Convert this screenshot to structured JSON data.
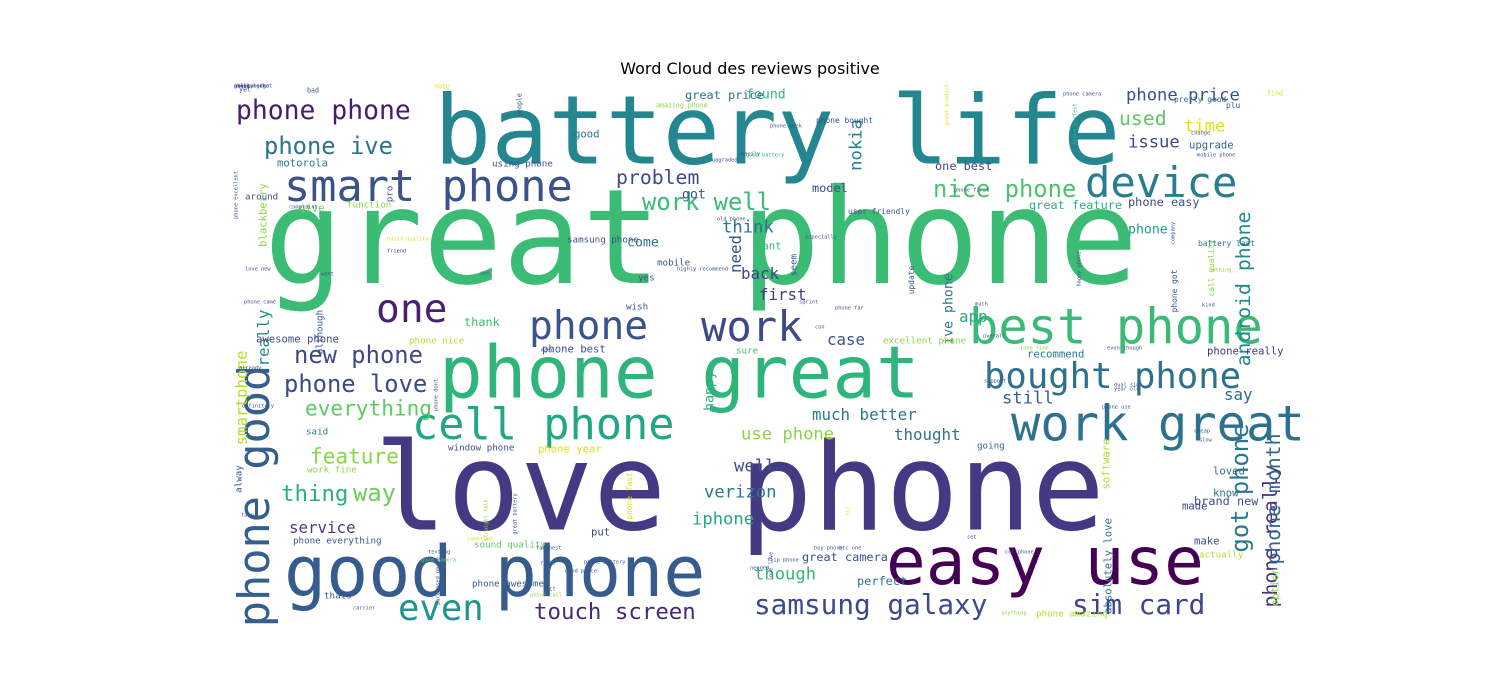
{
  "title": "Word Cloud des reviews positive",
  "chart_data": {
    "type": "wordcloud",
    "colormap": "viridis",
    "background": "#ffffff",
    "words": [
      {
        "text": "great phone",
        "weight": 1.0,
        "color": "#3bbc74"
      },
      {
        "text": "love phone",
        "weight": 0.92,
        "color": "#443a83"
      },
      {
        "text": "battery life",
        "weight": 0.72,
        "color": "#24868e"
      },
      {
        "text": "phone great",
        "weight": 0.55,
        "color": "#2fb47c"
      },
      {
        "text": "good phone",
        "weight": 0.53,
        "color": "#365c8d"
      },
      {
        "text": "easy use",
        "weight": 0.5,
        "color": "#440154"
      },
      {
        "text": "best phone",
        "weight": 0.37,
        "color": "#3aba76"
      },
      {
        "text": "work great",
        "weight": 0.37,
        "color": "#2c728e"
      },
      {
        "text": "smart phone",
        "weight": 0.33,
        "color": "#3b528b"
      },
      {
        "text": "phone good",
        "weight": 0.33,
        "color": "#355f8d"
      },
      {
        "text": "cell phone",
        "weight": 0.33,
        "color": "#22a785"
      },
      {
        "text": "device",
        "weight": 0.32,
        "color": "#287d8e"
      },
      {
        "text": "work",
        "weight": 0.32,
        "color": "#3e4989"
      },
      {
        "text": "one",
        "weight": 0.3,
        "color": "#482173"
      },
      {
        "text": "phone",
        "weight": 0.3,
        "color": "#3a538b"
      },
      {
        "text": "bought phone",
        "weight": 0.27,
        "color": "#2d718e"
      },
      {
        "text": "even",
        "weight": 0.27,
        "color": "#1f958b"
      },
      {
        "text": "samsung galaxy",
        "weight": 0.21,
        "color": "#3e4989"
      },
      {
        "text": "sim card",
        "weight": 0.21,
        "color": "#404588"
      },
      {
        "text": "phone phone",
        "weight": 0.2,
        "color": "#481b6d"
      },
      {
        "text": "work well",
        "weight": 0.18,
        "color": "#3bbb75"
      },
      {
        "text": "nice phone",
        "weight": 0.18,
        "color": "#4cc26c"
      },
      {
        "text": "phone ive",
        "weight": 0.18,
        "color": "#2c738e"
      },
      {
        "text": "new phone",
        "weight": 0.18,
        "color": "#3f4788"
      },
      {
        "text": "phone love",
        "weight": 0.18,
        "color": "#3e4989"
      },
      {
        "text": "everything",
        "weight": 0.16,
        "color": "#5ec962"
      },
      {
        "text": "feature",
        "weight": 0.16,
        "color": "#8bd646"
      },
      {
        "text": "thing",
        "weight": 0.17,
        "color": "#2ab07f"
      },
      {
        "text": "way",
        "weight": 0.18,
        "color": "#6ccd5a"
      },
      {
        "text": "touch screen",
        "weight": 0.17,
        "color": "#482878"
      },
      {
        "text": "got phone",
        "weight": 0.18,
        "color": "#2a788e"
      },
      {
        "text": "phone really",
        "weight": 0.15,
        "color": "#46327e"
      },
      {
        "text": "android phone",
        "weight": 0.15,
        "color": "#23898e"
      },
      {
        "text": "phone month",
        "weight": 0.15,
        "color": "#33638d"
      },
      {
        "text": "problem",
        "weight": 0.15,
        "color": "#3e4989"
      },
      {
        "text": "used",
        "weight": 0.15,
        "color": "#5ec962"
      },
      {
        "text": "time",
        "weight": 0.13,
        "color": "#dde318"
      },
      {
        "text": "issue",
        "weight": 0.13,
        "color": "#3f4788"
      },
      {
        "text": "phone price",
        "weight": 0.13,
        "color": "#3b528b"
      },
      {
        "text": "nokia",
        "weight": 0.13,
        "color": "#27808e"
      },
      {
        "text": "iphone",
        "weight": 0.13,
        "color": "#22a884"
      },
      {
        "text": "verizon",
        "weight": 0.13,
        "color": "#2a768e"
      },
      {
        "text": "though",
        "weight": 0.13,
        "color": "#35b779"
      },
      {
        "text": "use phone",
        "weight": 0.13,
        "color": "#8bd646"
      },
      {
        "text": "well",
        "weight": 0.13,
        "color": "#3b528b"
      },
      {
        "text": "thought",
        "weight": 0.12,
        "color": "#2c738e"
      },
      {
        "text": "still",
        "weight": 0.13,
        "color": "#33638d"
      },
      {
        "text": "say",
        "weight": 0.12,
        "color": "#31688e"
      },
      {
        "text": "much better",
        "weight": 0.12,
        "color": "#2a788e"
      },
      {
        "text": "smartphone",
        "weight": 0.12,
        "color": "#b5de2b"
      },
      {
        "text": "really",
        "weight": 0.12,
        "color": "#20928c"
      },
      {
        "text": "think",
        "weight": 0.13,
        "color": "#2c738e"
      },
      {
        "text": "need",
        "weight": 0.12,
        "color": "#3a538b"
      },
      {
        "text": "back",
        "weight": 0.12,
        "color": "#404588"
      },
      {
        "text": "first",
        "weight": 0.12,
        "color": "#443a83"
      },
      {
        "text": "app",
        "weight": 0.12,
        "color": "#25ab82"
      },
      {
        "text": "case",
        "weight": 0.12,
        "color": "#3b528b"
      },
      {
        "text": "service",
        "weight": 0.12,
        "color": "#433e85"
      },
      {
        "text": "happy",
        "weight": 0.1,
        "color": "#2ab07f"
      },
      {
        "text": "ive phone",
        "weight": 0.1,
        "color": "#2a788e"
      },
      {
        "text": "phone",
        "weight": 0.1,
        "color": "#1f9e89"
      },
      {
        "text": "come",
        "weight": 0.1,
        "color": "#2c728e"
      },
      {
        "text": "got",
        "weight": 0.1,
        "color": "#3b528b"
      },
      {
        "text": "found",
        "weight": 0.1,
        "color": "#31b57b"
      },
      {
        "text": "great price",
        "weight": 0.09,
        "color": "#2c738e"
      },
      {
        "text": "thank",
        "weight": 0.09,
        "color": "#3bbb75"
      },
      {
        "text": "model",
        "weight": 0.09,
        "color": "#3f4788"
      },
      {
        "text": "one best",
        "weight": 0.09,
        "color": "#404588"
      },
      {
        "text": "great feature",
        "weight": 0.09,
        "color": "#2ab07f"
      },
      {
        "text": "phone easy",
        "weight": 0.09,
        "color": "#3e4989"
      },
      {
        "text": "upgrade",
        "weight": 0.08,
        "color": "#31688e"
      },
      {
        "text": "put",
        "weight": 0.08,
        "color": "#404588"
      },
      {
        "text": "great camera",
        "weight": 0.09,
        "color": "#3b528b"
      },
      {
        "text": "perfect",
        "weight": 0.09,
        "color": "#2c728e"
      },
      {
        "text": "brand new",
        "weight": 0.09,
        "color": "#3b528b"
      },
      {
        "text": "made",
        "weight": 0.08,
        "color": "#404588"
      },
      {
        "text": "make",
        "weight": 0.08,
        "color": "#3b528b"
      },
      {
        "text": "know",
        "weight": 0.08,
        "color": "#2c738e"
      },
      {
        "text": "loved",
        "weight": 0.08,
        "color": "#2c728e"
      },
      {
        "text": "going",
        "weight": 0.07,
        "color": "#31688e"
      },
      {
        "text": "actually",
        "weight": 0.07,
        "color": "#b5de2b"
      },
      {
        "text": "absolutely love",
        "weight": 0.08,
        "color": "#2c728e"
      },
      {
        "text": "software",
        "weight": 0.08,
        "color": "#b5de2b"
      },
      {
        "text": "option",
        "weight": 0.08,
        "color": "#8bd646"
      },
      {
        "text": "recommend",
        "weight": 0.08,
        "color": "#2a788e"
      },
      {
        "text": "phone really",
        "weight": 0.08,
        "color": "#46327e"
      },
      {
        "text": "blackberry",
        "weight": 0.08,
        "color": "#8bd646"
      },
      {
        "text": "using phone",
        "weight": 0.07,
        "color": "#3b528b"
      },
      {
        "text": "good",
        "weight": 0.08,
        "color": "#2c738e"
      },
      {
        "text": "motorola",
        "weight": 0.08,
        "color": "#2a788e"
      },
      {
        "text": "give",
        "weight": 0.08,
        "color": "#6ccd5a"
      },
      {
        "text": "function",
        "weight": 0.07,
        "color": "#8bd646"
      },
      {
        "text": "around",
        "weight": 0.07,
        "color": "#3b528b"
      },
      {
        "text": "although",
        "weight": 0.07,
        "color": "#3b528b"
      },
      {
        "text": "phone nice",
        "weight": 0.07,
        "color": "#b5de2b"
      },
      {
        "text": "awesome phone",
        "weight": 0.08,
        "color": "#3e4989"
      },
      {
        "text": "phone best",
        "weight": 0.08,
        "color": "#3b528b"
      },
      {
        "text": "samsung phone",
        "weight": 0.07,
        "color": "#3b528b"
      },
      {
        "text": "mobile",
        "weight": 0.07,
        "color": "#3b528b"
      },
      {
        "text": "yes",
        "weight": 0.07,
        "color": "#3b528b"
      },
      {
        "text": "wish",
        "weight": 0.07,
        "color": "#3b528b"
      },
      {
        "text": "want",
        "weight": 0.08,
        "color": "#3bbb75"
      },
      {
        "text": "sure",
        "weight": 0.07,
        "color": "#3bbb75"
      },
      {
        "text": "said",
        "weight": 0.07,
        "color": "#2c728e"
      },
      {
        "text": "work fine",
        "weight": 0.07,
        "color": "#8bd646"
      },
      {
        "text": "window phone",
        "weight": 0.07,
        "color": "#3b528b"
      },
      {
        "text": "phone year",
        "weight": 0.08,
        "color": "#dde318"
      },
      {
        "text": "phone everything",
        "weight": 0.07,
        "color": "#3b528b"
      },
      {
        "text": "sound quality",
        "weight": 0.07,
        "color": "#5ec962"
      },
      {
        "text": "phone awesome",
        "weight": 0.07,
        "color": "#3b528b"
      },
      {
        "text": "thats",
        "weight": 0.07,
        "color": "#3b528b"
      },
      {
        "text": "alway",
        "weight": 0.07,
        "color": "#3b528b"
      },
      {
        "text": "pro",
        "weight": 0.07,
        "color": "#3b528b"
      },
      {
        "text": "excellent phone",
        "weight": 0.07,
        "color": "#8bd646"
      },
      {
        "text": "phone amazing",
        "weight": 0.07,
        "color": "#b5de2b"
      },
      {
        "text": "update",
        "weight": 0.06,
        "color": "#3b528b"
      },
      {
        "text": "seem",
        "weight": 0.07,
        "color": "#3b528b"
      },
      {
        "text": "user friendly",
        "weight": 0.06,
        "color": "#3b528b"
      },
      {
        "text": "phone fast",
        "weight": 0.06,
        "color": "#dde318"
      },
      {
        "text": "phone got",
        "weight": 0.06,
        "color": "#3b528b"
      },
      {
        "text": "call quality",
        "weight": 0.06,
        "color": "#8bd646"
      },
      {
        "text": "battery last",
        "weight": 0.06,
        "color": "#2c728e"
      },
      {
        "text": "pretty good",
        "weight": 0.06,
        "color": "#2c728e"
      },
      {
        "text": "phone bought",
        "weight": 0.06,
        "color": "#3b528b"
      },
      {
        "text": "plu",
        "weight": 0.06,
        "color": "#3b528b"
      },
      {
        "text": "yet",
        "weight": 0.05,
        "color": "#3b528b"
      },
      {
        "text": "bad",
        "weight": 0.05,
        "color": "#3b528b"
      },
      {
        "text": "note",
        "weight": 0.05,
        "color": "#dde318"
      },
      {
        "text": "people",
        "weight": 0.05,
        "color": "#3b528b"
      },
      {
        "text": "amazing phone",
        "weight": 0.05,
        "color": "#8bd646"
      },
      {
        "text": "phone camera",
        "weight": 0.04,
        "color": "#3b528b"
      },
      {
        "text": "find",
        "weight": 0.05,
        "color": "#dde318"
      },
      {
        "text": "great product",
        "weight": 0.04,
        "color": "#dde318"
      },
      {
        "text": "phone perfect",
        "weight": 0.04,
        "color": "#2ab07f"
      },
      {
        "text": "easily",
        "weight": 0.04,
        "color": "#3b528b"
      },
      {
        "text": "phone week",
        "weight": 0.04,
        "color": "#3b528b"
      },
      {
        "text": "change",
        "weight": 0.04,
        "color": "#3b528b"
      },
      {
        "text": "mobile phone",
        "weight": 0.04,
        "color": "#3b528b"
      },
      {
        "text": "phone excellent",
        "weight": 0.04,
        "color": "#3b528b"
      },
      {
        "text": "complaint",
        "weight": 0.04,
        "color": "#3b528b"
      },
      {
        "text": "upgraded",
        "weight": 0.04,
        "color": "#3b528b"
      },
      {
        "text": "good battery",
        "weight": 0.04,
        "color": "#2ab07f"
      },
      {
        "text": "phone first",
        "weight": 0.04,
        "color": "#3b528b"
      },
      {
        "text": "build quality",
        "weight": 0.04,
        "color": "#dde318"
      },
      {
        "text": "friend",
        "weight": 0.04,
        "color": "#3b528b"
      },
      {
        "text": "old phone",
        "weight": 0.04,
        "color": "#3b528b"
      },
      {
        "text": "especially",
        "weight": 0.04,
        "color": "#3b528b"
      },
      {
        "text": "happy phone",
        "weight": 0.04,
        "color": "#3b528b"
      },
      {
        "text": "company",
        "weight": 0.04,
        "color": "#3b528b"
      },
      {
        "text": "nothing",
        "weight": 0.04,
        "color": "#8bd646"
      },
      {
        "text": "went",
        "weight": 0.04,
        "color": "#3b528b"
      },
      {
        "text": "see",
        "weight": 0.04,
        "color": "#3b528b"
      },
      {
        "text": "highly recommend",
        "weight": 0.04,
        "color": "#3b528b"
      },
      {
        "text": "love new",
        "weight": 0.04,
        "color": "#3b528b"
      },
      {
        "text": "phone came",
        "weight": 0.04,
        "color": "#3b528b"
      },
      {
        "text": "sprint",
        "weight": 0.04,
        "color": "#3b528b"
      },
      {
        "text": "phone far",
        "weight": 0.04,
        "color": "#3b528b"
      },
      {
        "text": "much",
        "weight": 0.04,
        "color": "#3b528b"
      },
      {
        "text": "kind",
        "weight": 0.04,
        "color": "#3b528b"
      },
      {
        "text": "keep",
        "weight": 0.04,
        "color": "#3b528b"
      },
      {
        "text": "con",
        "weight": 0.04,
        "color": "#3b528b"
      },
      {
        "text": "overall",
        "weight": 0.04,
        "color": "#3b528b"
      },
      {
        "text": "already",
        "weight": 0.04,
        "color": "#3b528b"
      },
      {
        "text": "definitely",
        "weight": 0.04,
        "color": "#3b528b"
      },
      {
        "text": "support",
        "weight": 0.04,
        "color": "#3b528b"
      },
      {
        "text": "long time",
        "weight": 0.04,
        "color": "#8bd646"
      },
      {
        "text": "even though",
        "weight": 0.04,
        "color": "#3b528b"
      },
      {
        "text": "dual sim",
        "weight": 0.04,
        "color": "#3b528b"
      },
      {
        "text": "year old",
        "weight": 0.04,
        "color": "#3b528b"
      },
      {
        "text": "phone use",
        "weight": 0.04,
        "color": "#3b528b"
      },
      {
        "text": "cheap",
        "weight": 0.04,
        "color": "#3b528b"
      },
      {
        "text": "texting",
        "weight": 0.04,
        "color": "#3b528b"
      },
      {
        "text": "purchased phone",
        "weight": 0.04,
        "color": "#3b528b"
      },
      {
        "text": "good camera",
        "weight": 0.04,
        "color": "#5ec962"
      },
      {
        "text": "slow",
        "weight": 0.04,
        "color": "#3b528b"
      },
      {
        "text": "phone dont",
        "weight": 0.04,
        "color": "#3b528b"
      },
      {
        "text": "straight talk",
        "weight": 0.04,
        "color": "#8bd646"
      },
      {
        "text": "great battery",
        "weight": 0.04,
        "color": "#3b528b"
      },
      {
        "text": "far best",
        "weight": 0.04,
        "color": "#3b528b"
      },
      {
        "text": "right",
        "weight": 0.04,
        "color": "#3b528b"
      },
      {
        "text": "needed",
        "weight": 0.04,
        "color": "#3b528b"
      },
      {
        "text": "etc",
        "weight": 0.04,
        "color": "#dde318"
      },
      {
        "text": "buy phone",
        "weight": 0.04,
        "color": "#3b528b"
      },
      {
        "text": "htc one",
        "weight": 0.04,
        "color": "#3b528b"
      },
      {
        "text": "set",
        "weight": 0.04,
        "color": "#3b528b"
      },
      {
        "text": "cellphone",
        "weight": 0.04,
        "color": "#3b528b"
      },
      {
        "text": "turn",
        "weight": 0.04,
        "color": "#3b528b"
      },
      {
        "text": "sometime",
        "weight": 0.04,
        "color": "#dde318"
      },
      {
        "text": "phone battery",
        "weight": 0.04,
        "color": "#3b528b"
      },
      {
        "text": "flip phone",
        "weight": 0.04,
        "color": "#3b528b"
      },
      {
        "text": "love love",
        "weight": 0.04,
        "color": "#3b528b"
      },
      {
        "text": "fact",
        "weight": 0.04,
        "color": "#3b528b"
      },
      {
        "text": "good price",
        "weight": 0.04,
        "color": "#3b528b"
      },
      {
        "text": "phone call",
        "weight": 0.04,
        "color": "#8bd646"
      },
      {
        "text": "carrier",
        "weight": 0.04,
        "color": "#3b528b"
      },
      {
        "text": "anything",
        "weight": 0.04,
        "color": "#8bd646"
      },
      {
        "text": "galaxy edge",
        "weight": 0.04,
        "color": "#3b528b"
      },
      {
        "text": "phone look",
        "weight": 0.04,
        "color": "#3b528b"
      },
      {
        "text": "small",
        "weight": 0.04,
        "color": "#3b528b"
      },
      {
        "text": "camera great",
        "weight": 0.04,
        "color": "#3b528b"
      },
      {
        "text": "using",
        "weight": 0.04,
        "color": "#3b528b"
      },
      {
        "text": "phone much",
        "weight": 0.04,
        "color": "#3b528b"
      }
    ]
  }
}
